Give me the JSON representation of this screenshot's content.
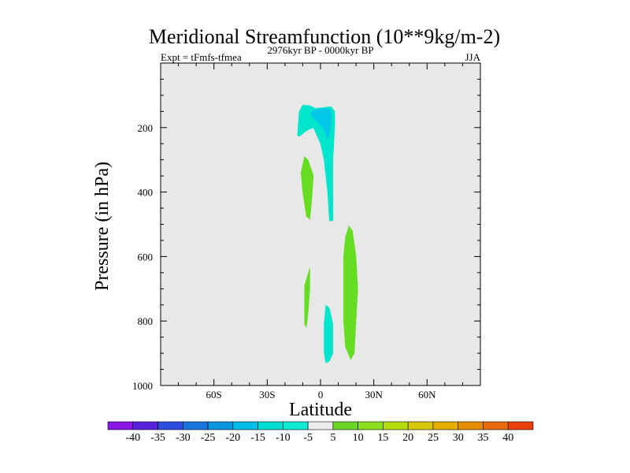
{
  "chart_data": {
    "type": "contour",
    "title": "Meridional Streamfunction (10**9kg/m-2)",
    "subtitle_left": "Expt = tFmfs-tfmea",
    "subtitle_center": "2976kyr BP - 0000kyr BP",
    "subtitle_right": "JJA",
    "xlabel": "Latitude",
    "ylabel": "Pressure (in hPa)",
    "xlim": [
      -90,
      90
    ],
    "ylim": [
      1000,
      0
    ],
    "x_ticks": [
      {
        "value": -60,
        "label": "60S"
      },
      {
        "value": -30,
        "label": "30S"
      },
      {
        "value": 0,
        "label": "0"
      },
      {
        "value": 30,
        "label": "30N"
      },
      {
        "value": 60,
        "label": "60N"
      }
    ],
    "y_ticks": [
      {
        "value": 200,
        "label": "200"
      },
      {
        "value": 400,
        "label": "400"
      },
      {
        "value": 600,
        "label": "600"
      },
      {
        "value": 800,
        "label": "800"
      },
      {
        "value": 1000,
        "label": "1000"
      }
    ],
    "background_color": "#e8e8e8",
    "regions": [
      {
        "name": "upper-negative-cell",
        "value": -10,
        "color": "#00e5cc",
        "points": [
          [
            -13,
            225
          ],
          [
            -12,
            150
          ],
          [
            -10,
            130
          ],
          [
            -6,
            132
          ],
          [
            -3,
            140
          ],
          [
            2,
            138
          ],
          [
            6,
            135
          ],
          [
            8,
            150
          ],
          [
            8,
            200
          ],
          [
            7,
            300
          ],
          [
            7,
            400
          ],
          [
            7,
            488
          ],
          [
            5,
            490
          ],
          [
            4,
            400
          ],
          [
            2,
            300
          ],
          [
            0,
            250
          ],
          [
            -4,
            200
          ],
          [
            -8,
            210
          ],
          [
            -12,
            228
          ]
        ]
      },
      {
        "name": "upper-negative-core",
        "value": -15,
        "color": "#00c8e6",
        "points": [
          [
            -5,
            150
          ],
          [
            0,
            142
          ],
          [
            4,
            140
          ],
          [
            6,
            150
          ],
          [
            6,
            180
          ],
          [
            5,
            215
          ],
          [
            4,
            240
          ],
          [
            2,
            205
          ],
          [
            -2,
            180
          ],
          [
            -5,
            165
          ]
        ]
      },
      {
        "name": "upper-positive-cell",
        "value": 10,
        "color": "#66dd22",
        "points": [
          [
            -9,
            290
          ],
          [
            -7,
            300
          ],
          [
            -4,
            350
          ],
          [
            -5,
            430
          ],
          [
            -6,
            485
          ],
          [
            -8,
            475
          ],
          [
            -10,
            400
          ],
          [
            -11,
            340
          ]
        ]
      },
      {
        "name": "lower-left-positive-cell",
        "value": 10,
        "color": "#66dd22",
        "points": [
          [
            -6,
            635
          ],
          [
            -6,
            700
          ],
          [
            -7,
            775
          ],
          [
            -8,
            820
          ],
          [
            -9,
            810
          ],
          [
            -9,
            760
          ],
          [
            -9,
            690
          ]
        ]
      },
      {
        "name": "lower-right-positive-cell",
        "value": 10,
        "color": "#66dd22",
        "points": [
          [
            16,
            505
          ],
          [
            18,
            520
          ],
          [
            20,
            600
          ],
          [
            21,
            700
          ],
          [
            20,
            800
          ],
          [
            19,
            900
          ],
          [
            17,
            920
          ],
          [
            14,
            880
          ],
          [
            13,
            800
          ],
          [
            13,
            700
          ],
          [
            13,
            600
          ],
          [
            14,
            540
          ]
        ]
      },
      {
        "name": "lower-negative-cell",
        "value": -10,
        "color": "#00e5cc",
        "points": [
          [
            3,
            750
          ],
          [
            5,
            760
          ],
          [
            7,
            810
          ],
          [
            7,
            900
          ],
          [
            5,
            925
          ],
          [
            3,
            930
          ],
          [
            2,
            900
          ],
          [
            2,
            810
          ]
        ]
      }
    ],
    "colorbar": {
      "labels": [
        "-40",
        "-35",
        "-30",
        "-25",
        "-20",
        "-15",
        "-10",
        "-5",
        "5",
        "10",
        "15",
        "20",
        "25",
        "30",
        "35",
        "40"
      ],
      "colors": [
        "#8a17e6",
        "#5a20dd",
        "#2a4ee0",
        "#1a74e0",
        "#0996e0",
        "#00bde6",
        "#00dcd0",
        "#10ead0",
        "#ececec",
        "#6ad822",
        "#8ae01a",
        "#b6dc10",
        "#d8c80a",
        "#e6ac00",
        "#e68c00",
        "#e66a0a",
        "#e8400a"
      ]
    }
  }
}
